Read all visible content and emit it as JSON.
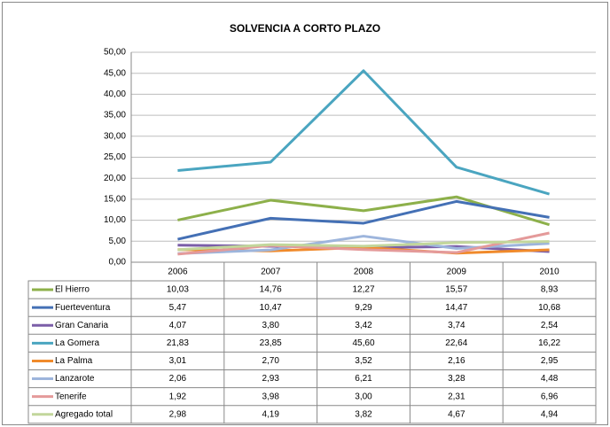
{
  "chart_data": {
    "type": "line",
    "title": "SOLVENCIA  A CORTO PLAZO",
    "categories": [
      "2006",
      "2007",
      "2008",
      "2009",
      "2010"
    ],
    "ylim": [
      0,
      50
    ],
    "yticks": [
      {
        "value": 0,
        "label": "0,00"
      },
      {
        "value": 5,
        "label": "5,00"
      },
      {
        "value": 10,
        "label": "10,00"
      },
      {
        "value": 15,
        "label": "15,00"
      },
      {
        "value": 20,
        "label": "20,00"
      },
      {
        "value": 25,
        "label": "25,00"
      },
      {
        "value": 30,
        "label": "30,00"
      },
      {
        "value": 35,
        "label": "35,00"
      },
      {
        "value": 40,
        "label": "40,00"
      },
      {
        "value": 45,
        "label": "45,00"
      },
      {
        "value": 50,
        "label": "50,00"
      }
    ],
    "grid": true,
    "series": [
      {
        "name": "El Hierro",
        "color": "#8db04a",
        "values": [
          10.03,
          14.76,
          12.27,
          15.57,
          8.93
        ],
        "value_labels": [
          "10,03",
          "14,76",
          "12,27",
          "15,57",
          "8,93"
        ]
      },
      {
        "name": "Fuerteventura",
        "color": "#4470b5",
        "values": [
          5.47,
          10.47,
          9.29,
          14.47,
          10.68
        ],
        "value_labels": [
          "5,47",
          "10,47",
          "9,29",
          "14,47",
          "10,68"
        ]
      },
      {
        "name": "Gran Canaria",
        "color": "#7b5ea8",
        "values": [
          4.07,
          3.8,
          3.42,
          3.74,
          2.54
        ],
        "value_labels": [
          "4,07",
          "3,80",
          "3,42",
          "3,74",
          "2,54"
        ]
      },
      {
        "name": "La Gomera",
        "color": "#4aa5c0",
        "values": [
          21.83,
          23.85,
          45.6,
          22.64,
          16.22
        ],
        "value_labels": [
          "21,83",
          "23,85",
          "45,60",
          "22,64",
          "16,22"
        ]
      },
      {
        "name": "La Palma",
        "color": "#f08a2b",
        "values": [
          3.01,
          2.7,
          3.52,
          2.16,
          2.95
        ],
        "value_labels": [
          "3,01",
          "2,70",
          "3,52",
          "2,16",
          "2,95"
        ]
      },
      {
        "name": "Lanzarote",
        "color": "#9db5dc",
        "values": [
          2.06,
          2.93,
          6.21,
          3.28,
          4.48
        ],
        "value_labels": [
          "2,06",
          "2,93",
          "6,21",
          "3,28",
          "4,48"
        ]
      },
      {
        "name": "Tenerife",
        "color": "#e49a9a",
        "values": [
          1.92,
          3.98,
          3.0,
          2.31,
          6.96
        ],
        "value_labels": [
          "1,92",
          "3,98",
          "3,00",
          "2,31",
          "6,96"
        ]
      },
      {
        "name": "Agregado total",
        "color": "#c2d69b",
        "values": [
          2.98,
          4.19,
          3.82,
          4.67,
          4.94
        ],
        "value_labels": [
          "2,98",
          "4,19",
          "3,82",
          "4,67",
          "4,94"
        ]
      }
    ]
  }
}
